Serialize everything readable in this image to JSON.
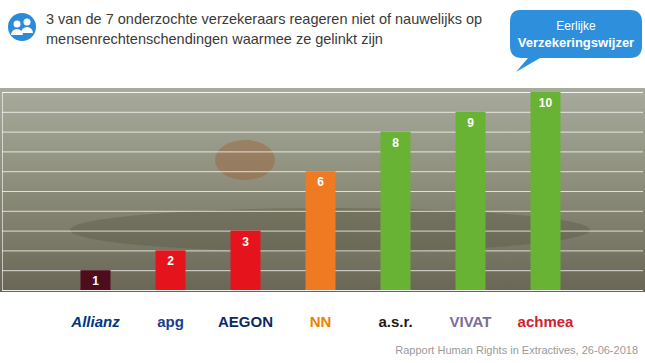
{
  "chart_data": {
    "type": "bar",
    "title": "3 van de 7 onderzochte verzekeraars reageren niet of nauwelijks op mensenrechtenschendingen waarmee ze gelinkt zijn",
    "categories": [
      "Allianz",
      "apg",
      "AEGON",
      "NN",
      "a.s.r.",
      "VIVAT",
      "achmea"
    ],
    "values": [
      1,
      2,
      3,
      6,
      8,
      9,
      10
    ],
    "colors": [
      "#4e0c1c",
      "#e5141c",
      "#e5141c",
      "#f07a22",
      "#69b334",
      "#69b334",
      "#69b334"
    ],
    "ylim": [
      0,
      10
    ],
    "yticks": [
      0,
      1,
      2,
      3,
      4,
      5,
      6,
      7,
      8,
      9,
      10
    ],
    "grid": true,
    "data_labels": true,
    "tick_labels": "x",
    "annotations": [
      "Eerlijke Verzekeringswijzer",
      "Rapport Human Rights in Extractives, 26-06-2018"
    ]
  }
}
